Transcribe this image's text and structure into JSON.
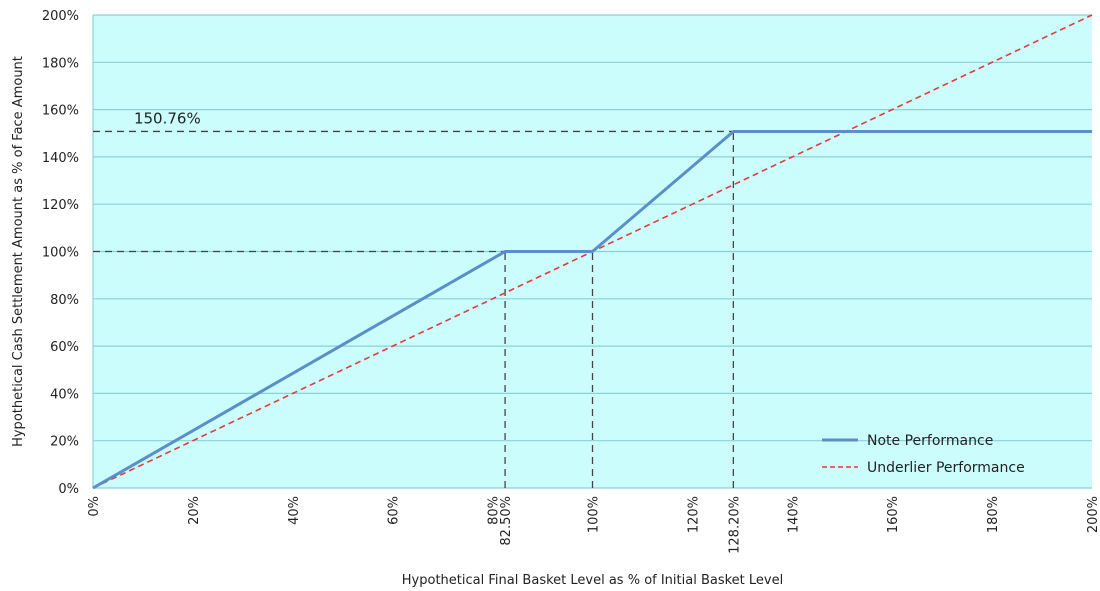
{
  "chart_data": {
    "type": "line",
    "xlabel": "Hypothetical Final Basket Level as % of Initial Basket Level",
    "ylabel": "Hypothetical Cash Settlement Amount as % of Face Amount",
    "xlim": [
      0,
      200
    ],
    "ylim": [
      0,
      200
    ],
    "x_ticks": [
      {
        "value": 0,
        "label": "0%"
      },
      {
        "value": 20,
        "label": "20%"
      },
      {
        "value": 40,
        "label": "40%"
      },
      {
        "value": 60,
        "label": "60%"
      },
      {
        "value": 80,
        "label": "80%"
      },
      {
        "value": 82.5,
        "label": "82.50%"
      },
      {
        "value": 100,
        "label": "100%"
      },
      {
        "value": 120,
        "label": "120%"
      },
      {
        "value": 128.2,
        "label": "128.20%"
      },
      {
        "value": 140,
        "label": "140%"
      },
      {
        "value": 160,
        "label": "160%"
      },
      {
        "value": 180,
        "label": "180%"
      },
      {
        "value": 200,
        "label": "200%"
      }
    ],
    "y_ticks": [
      {
        "value": 0,
        "label": "0%"
      },
      {
        "value": 20,
        "label": "20%"
      },
      {
        "value": 40,
        "label": "40%"
      },
      {
        "value": 60,
        "label": "60%"
      },
      {
        "value": 80,
        "label": "80%"
      },
      {
        "value": 100,
        "label": "100%"
      },
      {
        "value": 120,
        "label": "120%"
      },
      {
        "value": 140,
        "label": "140%"
      },
      {
        "value": 160,
        "label": "160%"
      },
      {
        "value": 180,
        "label": "180%"
      },
      {
        "value": 200,
        "label": "200%"
      }
    ],
    "grid": "horizontal",
    "legend_position": "bottom-right",
    "series": [
      {
        "name": "Note Performance",
        "color": "#5b8fc7",
        "style": "solid",
        "points": [
          [
            0,
            0
          ],
          [
            82.5,
            100
          ],
          [
            100,
            100
          ],
          [
            128.2,
            150.76
          ],
          [
            200,
            150.76
          ]
        ]
      },
      {
        "name": "Underlier Performance",
        "color": "#e03c3c",
        "style": "dashed",
        "points": [
          [
            0,
            0
          ],
          [
            200,
            200
          ]
        ]
      }
    ],
    "reference_lines": [
      {
        "from": [
          0,
          100
        ],
        "to": [
          82.5,
          100
        ]
      },
      {
        "from": [
          82.5,
          0
        ],
        "to": [
          82.5,
          100
        ]
      },
      {
        "from": [
          100,
          0
        ],
        "to": [
          100,
          100
        ]
      },
      {
        "from": [
          0,
          150.76
        ],
        "to": [
          128.2,
          150.76
        ]
      },
      {
        "from": [
          128.2,
          0
        ],
        "to": [
          128.2,
          150.76
        ]
      }
    ],
    "annotations": [
      {
        "text": "150.76%",
        "x": 5,
        "y": 150.76
      }
    ],
    "colors": {
      "plot_background": "#ccfdfd",
      "gridline": "#8fd0d6",
      "reference": "#444444"
    }
  }
}
